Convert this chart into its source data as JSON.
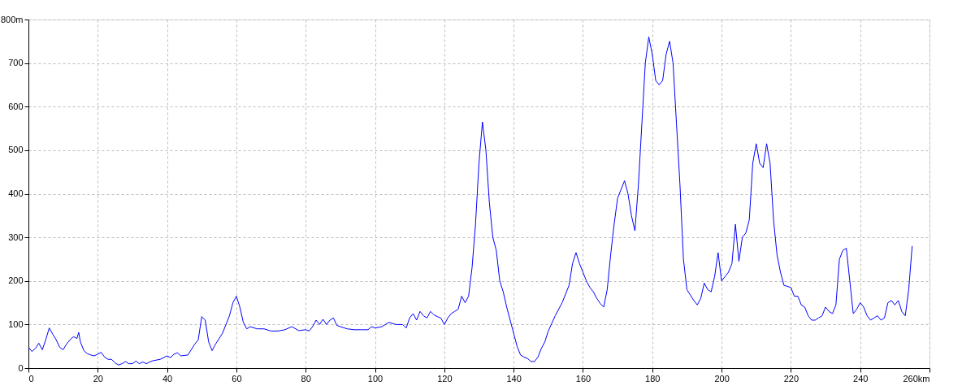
{
  "chart_data": {
    "type": "line",
    "x": [
      0,
      1,
      2,
      3,
      4,
      5,
      6,
      7,
      8,
      9,
      10,
      11,
      12,
      13,
      14,
      14.5,
      15,
      16,
      17,
      18,
      19,
      20,
      21,
      22,
      23,
      24,
      25,
      26,
      27,
      28,
      29,
      30,
      31,
      32,
      33,
      34,
      35,
      36,
      38,
      40,
      41,
      42,
      43,
      44,
      46,
      48,
      49,
      50,
      51,
      52,
      53,
      54,
      56,
      58,
      59,
      60,
      61,
      62,
      63,
      64,
      66,
      68,
      70,
      72,
      74,
      76,
      78,
      80,
      81,
      82,
      83,
      84,
      85,
      86,
      87,
      88,
      89,
      90,
      92,
      94,
      96,
      98,
      99,
      100,
      102,
      104,
      106,
      108,
      109,
      110,
      111,
      112,
      113,
      114,
      115,
      116,
      117,
      118,
      119,
      120,
      121,
      122,
      123,
      124,
      125,
      126,
      127,
      128,
      129,
      130,
      131,
      132,
      133,
      134,
      135,
      136,
      137,
      138,
      139,
      140,
      141,
      142,
      143,
      144,
      145,
      146,
      147,
      148,
      149,
      150,
      152,
      154,
      156,
      157,
      158,
      159,
      160,
      161,
      162,
      163,
      164,
      165,
      166,
      167,
      168,
      169,
      170,
      171,
      172,
      173,
      174,
      175,
      176,
      177,
      178,
      179,
      180,
      181,
      182,
      183,
      184,
      185,
      186,
      187,
      188,
      189,
      190,
      192,
      193,
      194,
      195,
      196,
      197,
      198,
      199,
      200,
      201,
      202,
      203,
      204,
      205,
      206,
      207,
      208,
      209,
      210,
      211,
      212,
      213,
      214,
      215,
      216,
      217,
      218,
      220,
      221,
      222,
      223,
      224,
      225,
      226,
      227,
      228,
      229,
      230,
      231,
      232,
      233,
      234,
      235,
      236,
      237,
      238,
      239,
      240,
      241,
      242,
      243,
      244,
      245,
      246,
      247,
      248,
      249,
      250,
      251,
      252,
      253,
      254,
      255
    ],
    "series": [
      {
        "color": "#0000ff",
        "values": [
          48,
          38,
          45,
          57,
          42,
          65,
          92,
          78,
          65,
          48,
          42,
          55,
          65,
          72,
          68,
          82,
          60,
          40,
          33,
          30,
          28,
          32,
          36,
          25,
          20,
          20,
          12,
          7,
          10,
          15,
          10,
          10,
          16,
          10,
          14,
          10,
          14,
          17,
          20,
          28,
          24,
          32,
          35,
          28,
          30,
          55,
          65,
          118,
          110,
          60,
          40,
          55,
          80,
          120,
          150,
          165,
          140,
          105,
          90,
          95,
          90,
          90,
          85,
          85,
          88,
          95,
          86,
          88,
          85,
          95,
          110,
          100,
          112,
          100,
          110,
          115,
          98,
          95,
          90,
          88,
          88,
          88,
          95,
          92,
          95,
          105,
          100,
          100,
          92,
          115,
          125,
          110,
          130,
          120,
          115,
          130,
          122,
          118,
          115,
          100,
          115,
          125,
          130,
          135,
          165,
          150,
          165,
          230,
          330,
          470,
          565,
          500,
          380,
          300,
          270,
          200,
          175,
          140,
          110,
          80,
          50,
          30,
          25,
          22,
          15,
          15,
          25,
          45,
          60,
          85,
          120,
          150,
          190,
          240,
          265,
          240,
          220,
          200,
          185,
          175,
          160,
          148,
          140,
          180,
          260,
          330,
          390,
          410,
          430,
          400,
          350,
          315,
          420,
          560,
          700,
          760,
          720,
          660,
          650,
          660,
          720,
          750,
          700,
          560,
          420,
          250,
          180,
          155,
          145,
          160,
          195,
          180,
          175,
          210,
          265,
          200,
          210,
          220,
          240,
          330,
          245,
          300,
          310,
          340,
          470,
          515,
          470,
          460,
          515,
          470,
          340,
          260,
          220,
          190,
          185,
          165,
          165,
          145,
          140,
          120,
          110,
          110,
          115,
          120,
          140,
          130,
          125,
          145,
          250,
          270,
          275,
          200,
          125,
          135,
          150,
          140,
          120,
          110,
          115,
          120,
          110,
          115,
          150,
          155,
          145,
          155,
          130,
          120,
          180,
          280
        ]
      }
    ],
    "xlim": [
      0,
      260
    ],
    "xticks": [
      0,
      20,
      40,
      60,
      80,
      100,
      120,
      140,
      160,
      180,
      200,
      220,
      240,
      {
        "value": 260,
        "label": "260km"
      }
    ],
    "ylim": [
      0,
      800
    ],
    "yticks": [
      0,
      100,
      200,
      300,
      400,
      500,
      600,
      700,
      {
        "value": 800,
        "label": "800m"
      }
    ],
    "grid": true,
    "line_style": "solid"
  }
}
